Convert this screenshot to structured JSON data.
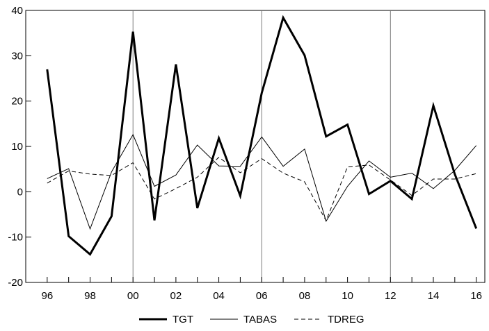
{
  "chart_data": {
    "type": "line",
    "title": "",
    "xlabel": "",
    "ylabel": "",
    "x": [
      1996,
      1997,
      1998,
      1999,
      2000,
      2001,
      2002,
      2003,
      2004,
      2005,
      2006,
      2007,
      2008,
      2009,
      2010,
      2011,
      2012,
      2013,
      2014,
      2015,
      2016
    ],
    "x_tick_values": [
      1996,
      1998,
      2000,
      2002,
      2004,
      2006,
      2008,
      2010,
      2012,
      2014,
      2016
    ],
    "x_tick_labels": [
      "96",
      "98",
      "00",
      "02",
      "04",
      "06",
      "08",
      "10",
      "12",
      "14",
      "16"
    ],
    "xlim": [
      1995,
      2016.4
    ],
    "ylim": [
      -20,
      40
    ],
    "y_ticks": [
      -20,
      -10,
      0,
      10,
      20,
      30,
      40
    ],
    "y_tick_labels": [
      "-20",
      "-10",
      "0",
      "10",
      "20",
      "30",
      "40"
    ],
    "vertical_reference_lines": [
      2000,
      2006,
      2012
    ],
    "grid": false,
    "legend_placement": "bottom-center",
    "series": [
      {
        "name": "TGT",
        "style": "solid-thick",
        "color": "#000000",
        "values": [
          27.0,
          -9.8,
          -13.8,
          -5.4,
          35.3,
          -6.3,
          28.1,
          -3.6,
          11.8,
          -0.9,
          21.8,
          38.4,
          30.1,
          12.2,
          14.8,
          -0.5,
          2.4,
          -1.6,
          19.0,
          3.9,
          -8.1
        ]
      },
      {
        "name": "TABAS",
        "style": "solid-thin",
        "color": "#000000",
        "values": [
          2.9,
          5.1,
          -8.2,
          4.4,
          12.6,
          1.2,
          3.7,
          10.3,
          5.7,
          5.6,
          12.1,
          5.6,
          9.4,
          -6.5,
          1.2,
          6.8,
          3.2,
          4.1,
          0.7,
          4.7,
          10.2
        ]
      },
      {
        "name": "TDREG",
        "style": "dashed",
        "color": "#000000",
        "values": [
          1.9,
          4.6,
          3.9,
          3.6,
          6.4,
          -1.6,
          0.7,
          3.2,
          7.6,
          4.2,
          7.3,
          4.1,
          2.2,
          -6.4,
          5.5,
          5.9,
          2.6,
          -0.8,
          2.8,
          2.8,
          4.0
        ]
      }
    ]
  }
}
